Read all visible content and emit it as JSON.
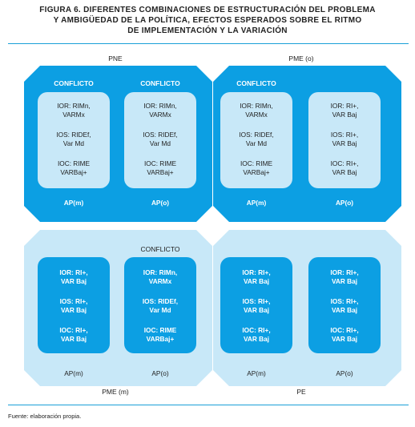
{
  "figure": {
    "title_lines": [
      "FIGURA 6. DIFERENTES COMBINACIONES DE ESTRUCTURACIÓN DEL PROBLEMA",
      "Y AMBIGÜEDAD DE LA POLÍTICA, EFECTOS ESPERADOS SOBRE EL RITMO",
      "DE IMPLEMENTACIÓN Y LA VARIACIÓN"
    ],
    "source": "Fuente: elaboración propia."
  },
  "quadrants": {
    "tl": {
      "label": "PNE",
      "left": {
        "conflict": "CONFLICTO",
        "items": [
          [
            "IOR: RIMn,",
            "VARMx"
          ],
          [
            "IOS: RIDEf,",
            "Var Md"
          ],
          [
            "IOC: RIME",
            "VARBaj+"
          ]
        ],
        "ap": "AP(m)"
      },
      "right": {
        "conflict": "CONFLICTO",
        "items": [
          [
            "IOR: RIMn,",
            "VARMx"
          ],
          [
            "IOS: RIDEf,",
            "Var Md"
          ],
          [
            "IOC: RIME",
            "VARBaj+"
          ]
        ],
        "ap": "AP(o)"
      }
    },
    "tr": {
      "label": "PME (o)",
      "left": {
        "conflict": "CONFLICTO",
        "items": [
          [
            "IOR: RIMn,",
            "VARMx"
          ],
          [
            "IOS: RIDEf,",
            "Var Md"
          ],
          [
            "IOC: RIME",
            "VARBaj+"
          ]
        ],
        "ap": "AP(m)"
      },
      "right": {
        "conflict": "",
        "items": [
          [
            "IOR: RI+,",
            "VAR Baj"
          ],
          [
            "IOS: RI+,",
            "VAR Baj"
          ],
          [
            "IOC: RI+,",
            "VAR Baj"
          ]
        ],
        "ap": "AP(o)"
      }
    },
    "bl": {
      "label": "PME (m)",
      "left": {
        "conflict": "",
        "items": [
          [
            "IOR: RI+,",
            "VAR Baj"
          ],
          [
            "IOS: RI+,",
            "VAR Baj"
          ],
          [
            "IOC: RI+,",
            "VAR Baj"
          ]
        ],
        "ap": "AP(m)"
      },
      "right": {
        "conflict": "CONFLICTO",
        "items": [
          [
            "IOR: RIMn,",
            "VARMx"
          ],
          [
            "IOS: RIDEf,",
            "Var Md"
          ],
          [
            "IOC: RIME",
            "VARBaj+"
          ]
        ],
        "ap": "AP(o)"
      }
    },
    "br": {
      "label": "PE",
      "left": {
        "conflict": "",
        "items": [
          [
            "IOR: RI+,",
            "VAR Baj"
          ],
          [
            "IOS: RI+,",
            "VAR Baj"
          ],
          [
            "IOC: RI+,",
            "VAR Baj"
          ]
        ],
        "ap": "AP(m)"
      },
      "right": {
        "conflict": "",
        "items": [
          [
            "IOR: RI+,",
            "VAR Baj"
          ],
          [
            "IOS: RI+,",
            "VAR Baj"
          ],
          [
            "IOC: RI+,",
            "VAR Baj"
          ]
        ],
        "ap": "AP(o)"
      }
    }
  }
}
